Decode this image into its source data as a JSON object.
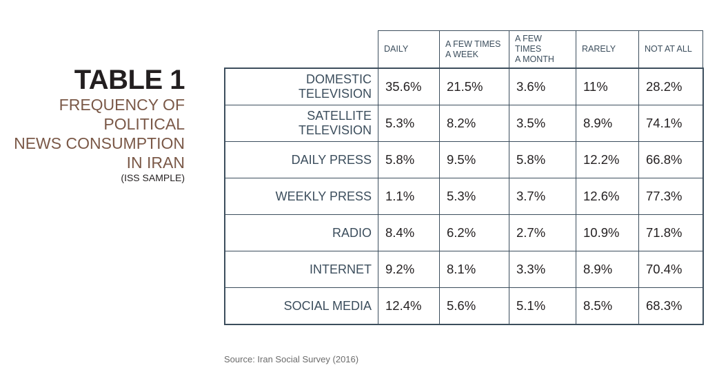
{
  "title": {
    "main": "TABLE 1",
    "sub_lines": [
      "FREQUENCY OF POLITICAL",
      "NEWS CONSUMPTION",
      "IN IRAN"
    ],
    "sample": "(ISS SAMPLE)"
  },
  "table": {
    "headers": [
      [
        "DAILY"
      ],
      [
        "A FEW TIMES",
        "A WEEK"
      ],
      [
        "A FEW TIMES",
        "A MONTH"
      ],
      [
        "RARELY"
      ],
      [
        "NOT AT ALL"
      ]
    ],
    "rows": [
      {
        "label": "DOMESTIC TELEVISION",
        "values": [
          "35.6%",
          "21.5%",
          "3.6%",
          "11%",
          "28.2%"
        ]
      },
      {
        "label": "SATELLITE TELEVISION",
        "values": [
          "5.3%",
          "8.2%",
          "3.5%",
          "8.9%",
          "74.1%"
        ]
      },
      {
        "label": "DAILY PRESS",
        "values": [
          "5.8%",
          "9.5%",
          "5.8%",
          "12.2%",
          "66.8%"
        ]
      },
      {
        "label": "WEEKLY PRESS",
        "values": [
          "1.1%",
          "5.3%",
          "3.7%",
          "12.6%",
          "77.3%"
        ]
      },
      {
        "label": "RADIO",
        "values": [
          "8.4%",
          "6.2%",
          "2.7%",
          "10.9%",
          "71.8%"
        ]
      },
      {
        "label": "INTERNET",
        "values": [
          "9.2%",
          "8.1%",
          "3.3%",
          "8.9%",
          "70.4%"
        ]
      },
      {
        "label": "SOCIAL MEDIA",
        "values": [
          "12.4%",
          "5.6%",
          "5.1%",
          "8.5%",
          "68.3%"
        ]
      }
    ]
  },
  "source": "Source: Iran Social Survey (2016)",
  "colors": {
    "heading": "#231f20",
    "subtitle": "#7a5847",
    "grid": "#3b4d5c"
  }
}
